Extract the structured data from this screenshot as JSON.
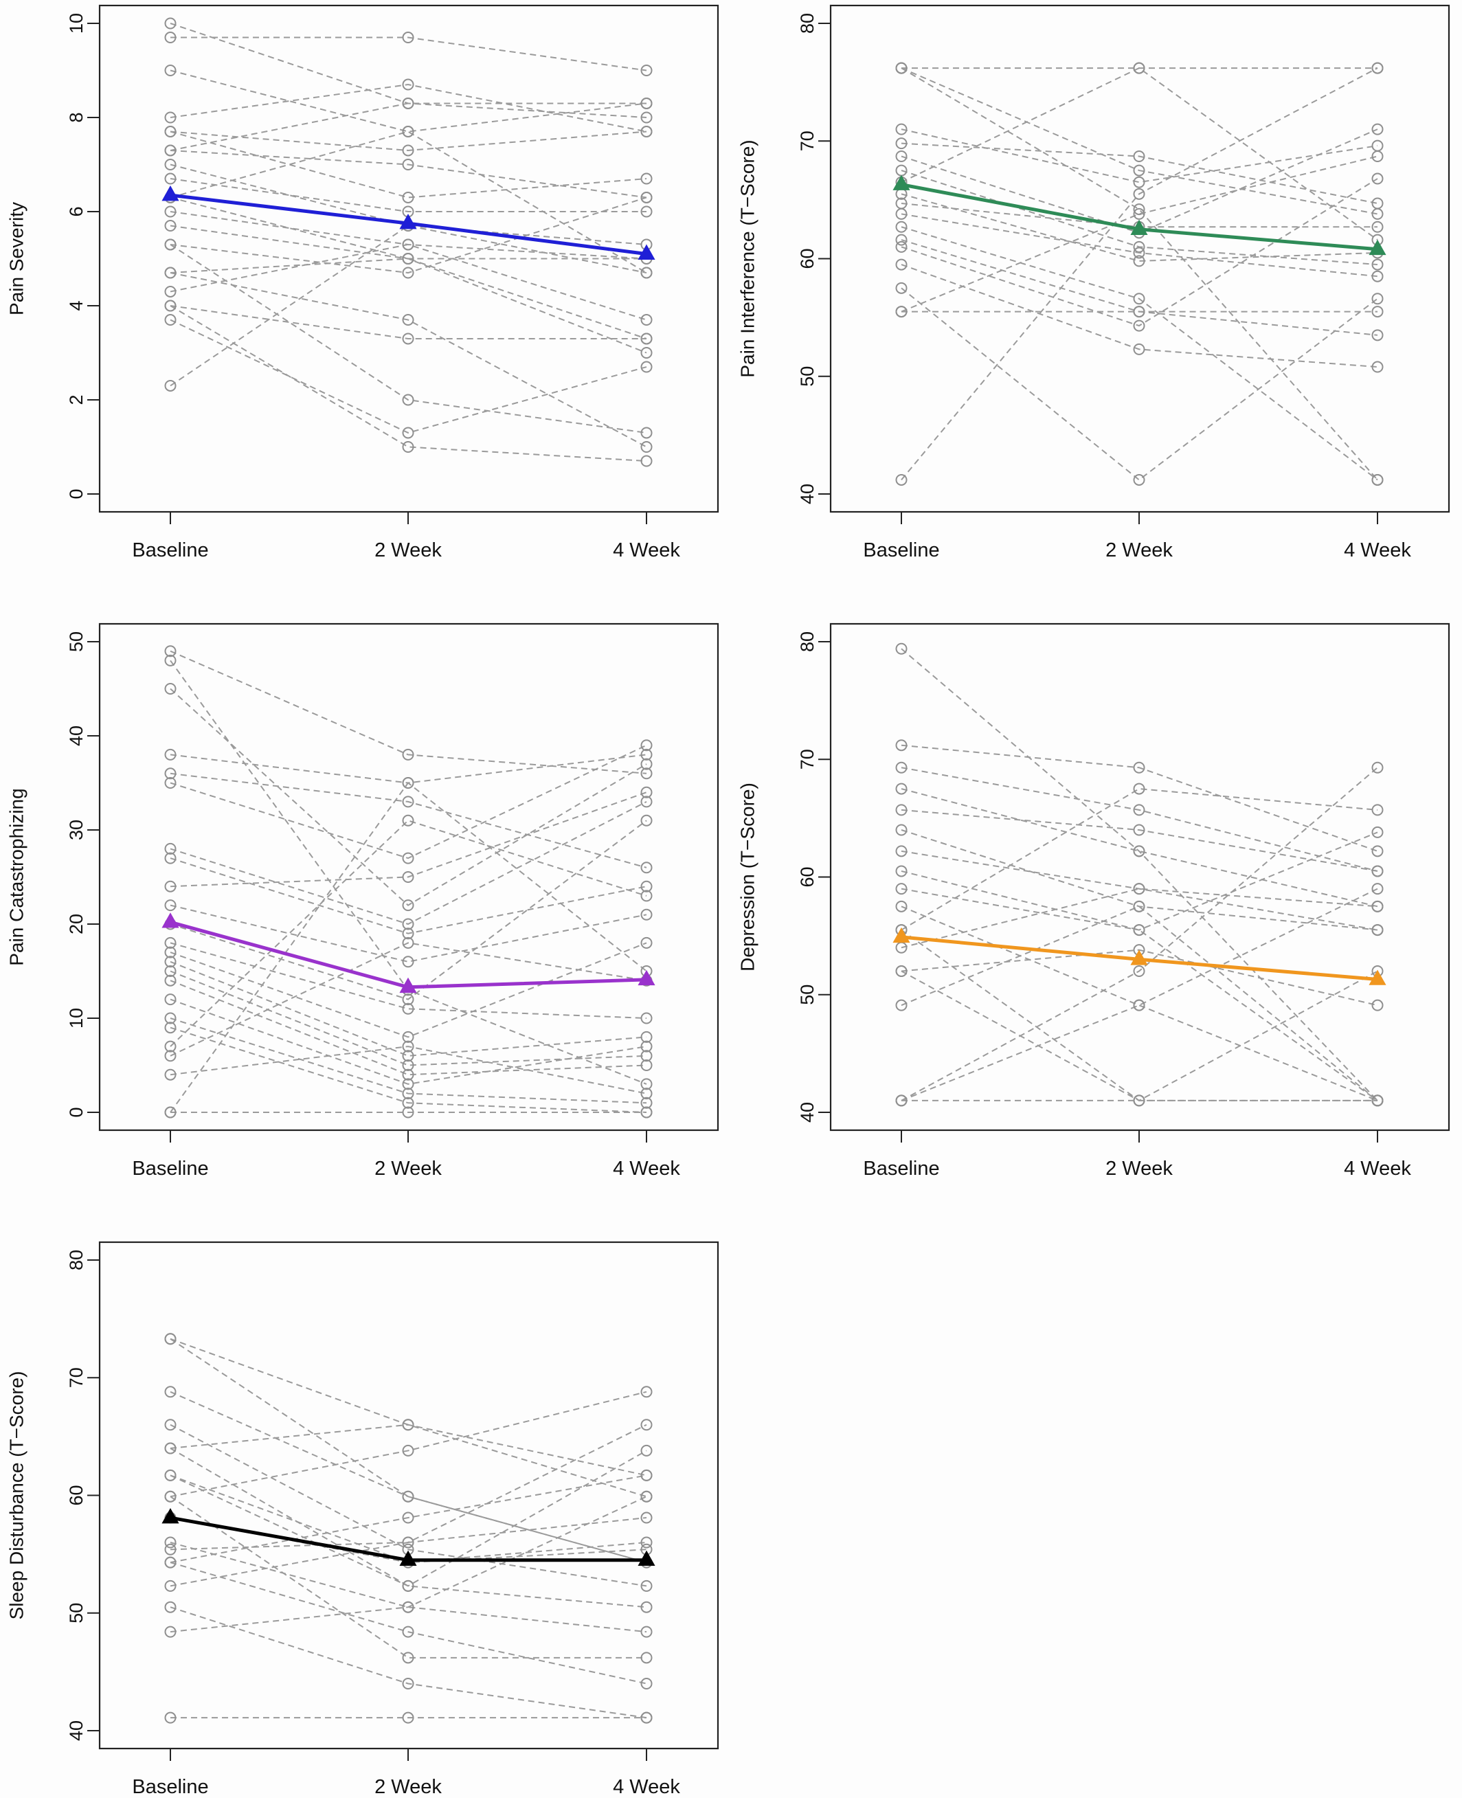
{
  "chart_data": [
    {
      "type": "line",
      "ylabel": "Pain Severity",
      "categories": [
        "Baseline",
        "2 Week",
        "4 Week"
      ],
      "ylim": [
        0,
        10
      ],
      "yticks": [
        0,
        2,
        4,
        6,
        8,
        10
      ],
      "mean_color": "#1f1fd6",
      "mean": [
        6.35,
        5.75,
        5.1
      ],
      "subjects": [
        [
          10.0,
          8.3,
          8.0
        ],
        [
          9.7,
          9.7,
          9.0
        ],
        [
          9.0,
          7.7,
          8.3
        ],
        [
          8.0,
          8.7,
          7.7
        ],
        [
          7.7,
          6.3,
          6.7
        ],
        [
          7.7,
          7.3,
          7.7
        ],
        [
          7.3,
          7.0,
          6.3
        ],
        [
          7.3,
          8.3,
          8.3
        ],
        [
          7.0,
          5.7,
          5.3
        ],
        [
          6.7,
          6.0,
          6.0
        ],
        [
          6.3,
          5.0,
          3.3
        ],
        [
          6.3,
          7.7,
          4.7
        ],
        [
          6.0,
          5.3,
          5.0
        ],
        [
          5.7,
          5.0,
          3.0
        ],
        [
          5.3,
          4.7,
          6.3
        ],
        [
          5.3,
          2.0,
          1.3
        ],
        [
          4.7,
          5.0,
          5.0
        ],
        [
          4.7,
          3.7,
          1.0
        ],
        [
          4.3,
          5.3,
          3.7
        ],
        [
          4.0,
          3.3,
          3.3
        ],
        [
          4.0,
          1.0,
          0.7
        ],
        [
          3.7,
          1.3,
          2.7
        ],
        [
          2.3,
          5.7,
          4.7
        ]
      ]
    },
    {
      "type": "line",
      "ylabel": "Pain Interference (T−Score)",
      "categories": [
        "Baseline",
        "2 Week",
        "4 Week"
      ],
      "ylim": [
        40,
        80
      ],
      "yticks": [
        40,
        50,
        60,
        70,
        80
      ],
      "mean_color": "#2e8b57",
      "mean": [
        66.3,
        62.5,
        60.8
      ],
      "subjects": [
        [
          76.2,
          76.2,
          76.2
        ],
        [
          76.2,
          67.5,
          63.8
        ],
        [
          76.2,
          64.2,
          41.2
        ],
        [
          71.0,
          66.5,
          69.6
        ],
        [
          69.8,
          68.7,
          64.7
        ],
        [
          68.7,
          62.2,
          71.0
        ],
        [
          67.5,
          61.0,
          59.5
        ],
        [
          66.5,
          76.2,
          61.6
        ],
        [
          65.5,
          59.8,
          60.5
        ],
        [
          64.7,
          62.7,
          62.7
        ],
        [
          63.8,
          60.5,
          58.5
        ],
        [
          62.7,
          56.6,
          41.2
        ],
        [
          61.6,
          55.5,
          55.5
        ],
        [
          61.0,
          54.3,
          66.8
        ],
        [
          59.5,
          52.3,
          50.8
        ],
        [
          57.5,
          41.2,
          56.6
        ],
        [
          55.5,
          55.5,
          53.5
        ],
        [
          55.5,
          63.8,
          68.7
        ],
        [
          41.2,
          65.5,
          76.2
        ]
      ]
    },
    {
      "type": "line",
      "ylabel": "Pain Catastrophizing",
      "categories": [
        "Baseline",
        "2 Week",
        "4 Week"
      ],
      "ylim": [
        0,
        50
      ],
      "yticks": [
        0,
        10,
        20,
        30,
        40,
        50
      ],
      "mean_color": "#9932cc",
      "mean": [
        20.2,
        13.3,
        14.1
      ],
      "subjects": [
        [
          49,
          38,
          36
        ],
        [
          48,
          13,
          3
        ],
        [
          45,
          22,
          37
        ],
        [
          38,
          35,
          15
        ],
        [
          36,
          33,
          26
        ],
        [
          35,
          27,
          39
        ],
        [
          28,
          20,
          33
        ],
        [
          27,
          19,
          24
        ],
        [
          24,
          25,
          34
        ],
        [
          22,
          16,
          21
        ],
        [
          20,
          12,
          31
        ],
        [
          18,
          11,
          10
        ],
        [
          17,
          8,
          18
        ],
        [
          16,
          6,
          8
        ],
        [
          15,
          5,
          6
        ],
        [
          14,
          4,
          5
        ],
        [
          12,
          3,
          7
        ],
        [
          10,
          2,
          1
        ],
        [
          9,
          1,
          0
        ],
        [
          7,
          31,
          23
        ],
        [
          6,
          18,
          14
        ],
        [
          4,
          7,
          2
        ],
        [
          0,
          0,
          0
        ],
        [
          0,
          35,
          38
        ]
      ]
    },
    {
      "type": "line",
      "ylabel": "Depression (T−Score)",
      "categories": [
        "Baseline",
        "2 Week",
        "4 Week"
      ],
      "ylim": [
        40,
        80
      ],
      "yticks": [
        40,
        50,
        60,
        70,
        80
      ],
      "mean_color": "#f0961e",
      "mean": [
        54.9,
        53.0,
        51.3
      ],
      "subjects": [
        [
          79.4,
          62.2,
          41.0
        ],
        [
          71.2,
          69.3,
          62.2
        ],
        [
          69.3,
          65.7,
          60.5
        ],
        [
          67.5,
          62.2,
          57.5
        ],
        [
          65.7,
          64.0,
          60.5
        ],
        [
          64.0,
          57.5,
          55.5
        ],
        [
          62.2,
          59.0,
          55.5
        ],
        [
          60.5,
          55.5,
          41.0
        ],
        [
          59.0,
          55.5,
          63.8
        ],
        [
          57.5,
          49.1,
          41.0
        ],
        [
          55.5,
          41.0,
          52.0
        ],
        [
          55.5,
          67.5,
          65.7
        ],
        [
          54.0,
          59.0,
          57.5
        ],
        [
          52.0,
          53.8,
          49.1
        ],
        [
          52.0,
          41.0,
          41.0
        ],
        [
          49.1,
          57.5,
          41.0
        ],
        [
          41.0,
          41.0,
          41.0
        ],
        [
          41.0,
          52.0,
          69.3
        ],
        [
          41.0,
          49.1,
          59.0
        ]
      ]
    },
    {
      "type": "line",
      "ylabel": "Sleep Disturbance (T−Score)",
      "categories": [
        "Baseline",
        "2 Week",
        "4 Week"
      ],
      "ylim": [
        40,
        80
      ],
      "yticks": [
        40,
        50,
        60,
        70,
        80
      ],
      "mean_color": "#000000",
      "mean": [
        58.1,
        54.5,
        54.5
      ],
      "subjects": [
        [
          73.3,
          66.0,
          59.9
        ],
        [
          73.3,
          59.9,
          54.3
        ],
        [
          68.8,
          59.9,
          54.3
        ],
        [
          66.0,
          55.4,
          52.3
        ],
        [
          64.0,
          52.3,
          50.5
        ],
        [
          64.0,
          66.0,
          61.7
        ],
        [
          61.7,
          54.3,
          56.0
        ],
        [
          59.9,
          63.8,
          68.8
        ],
        [
          59.9,
          46.2,
          46.2
        ],
        [
          58.1,
          54.3,
          55.4
        ],
        [
          56.0,
          50.5,
          48.4
        ],
        [
          54.3,
          58.1,
          61.7
        ],
        [
          54.3,
          48.4,
          44.0
        ],
        [
          52.3,
          56.0,
          66.0
        ],
        [
          50.5,
          44.0,
          41.1
        ],
        [
          48.4,
          50.5,
          59.9
        ],
        [
          41.1,
          41.1,
          41.1
        ],
        [
          55.4,
          56.0,
          58.1
        ],
        [
          61.7,
          52.3,
          63.8
        ]
      ]
    }
  ]
}
